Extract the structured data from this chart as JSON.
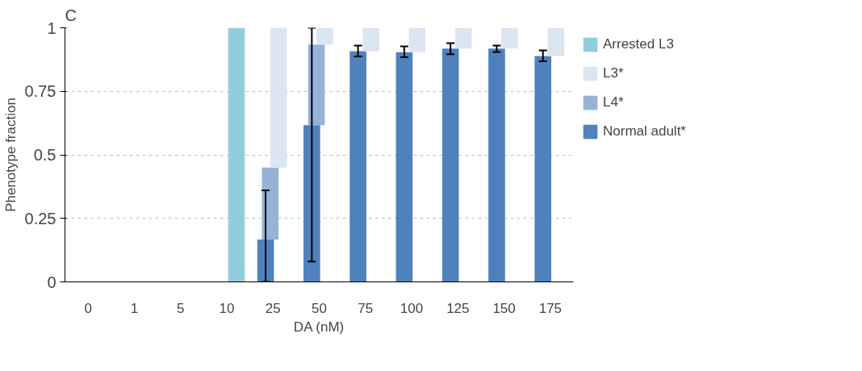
{
  "chart_data": {
    "type": "bar",
    "title": "C",
    "xlabel": "DA (nM)",
    "ylabel": "Phenotype fraction",
    "categories": [
      "0",
      "1",
      "5",
      "10",
      "25",
      "50",
      "75",
      "100",
      "125",
      "150",
      "175"
    ],
    "stacked": true,
    "series": [
      {
        "name": "Normal adult*",
        "color": "#4f81bd",
        "values": [
          null,
          null,
          null,
          null,
          0.167,
          0.617,
          0.908,
          0.904,
          0.918,
          0.918,
          0.889
        ],
        "errors": [
          null,
          null,
          null,
          null,
          [
            0,
            0.36
          ],
          [
            0.08,
            1.0
          ],
          [
            0.887,
            0.93
          ],
          [
            0.884,
            0.927
          ],
          [
            0.896,
            0.94
          ],
          [
            0.905,
            0.93
          ],
          [
            0.868,
            0.911
          ]
        ]
      },
      {
        "name": "L4*",
        "color": "#95b3d7",
        "values": [
          null,
          null,
          null,
          null,
          0.283,
          0.317,
          null,
          null,
          null,
          null,
          null
        ]
      },
      {
        "name": "L3*",
        "color": "#dce6f2",
        "values": [
          null,
          null,
          null,
          null,
          0.55,
          0.066,
          0.092,
          0.096,
          0.082,
          0.082,
          0.111
        ]
      },
      {
        "name": "Arrested L3",
        "color": "#92cddc",
        "values": [
          null,
          null,
          null,
          1,
          null,
          null,
          null,
          null,
          null,
          null,
          null
        ]
      }
    ],
    "ylim": [
      0,
      1
    ],
    "yticks": [
      0,
      0.25,
      0.5,
      0.75,
      1
    ],
    "grid": "y",
    "legend": "right"
  }
}
